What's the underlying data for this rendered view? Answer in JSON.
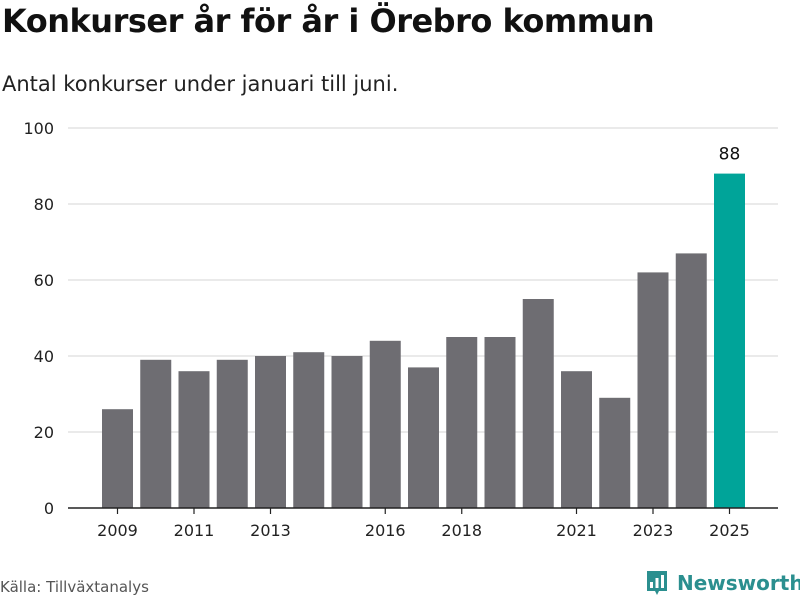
{
  "title": "Konkurser år för år i Örebro kommun",
  "subtitle": "Antal konkurser under januari till juni.",
  "source": "Källa: Tillväxtanalys",
  "brand": "Newsworthy",
  "colors": {
    "bar": "#6e6d72",
    "highlight": "#00a499",
    "brand": "#2b8f8f"
  },
  "chart_data": {
    "type": "bar",
    "x": [
      2009,
      2010,
      2011,
      2012,
      2013,
      2014,
      2015,
      2016,
      2017,
      2018,
      2019,
      2020,
      2021,
      2022,
      2023,
      2024,
      2025
    ],
    "values": [
      26,
      39,
      36,
      39,
      40,
      41,
      40,
      44,
      37,
      45,
      45,
      55,
      36,
      29,
      62,
      67,
      88
    ],
    "x_tick_labels": [
      "2009",
      "2011",
      "2013",
      "2016",
      "2018",
      "2021",
      "2023",
      "2025"
    ],
    "y_ticks": [
      0,
      20,
      40,
      60,
      80,
      100
    ],
    "ylim": [
      0,
      100
    ],
    "highlight_index": 16,
    "data_labels": [
      {
        "index": 16,
        "text": "88"
      }
    ],
    "grid": true
  }
}
